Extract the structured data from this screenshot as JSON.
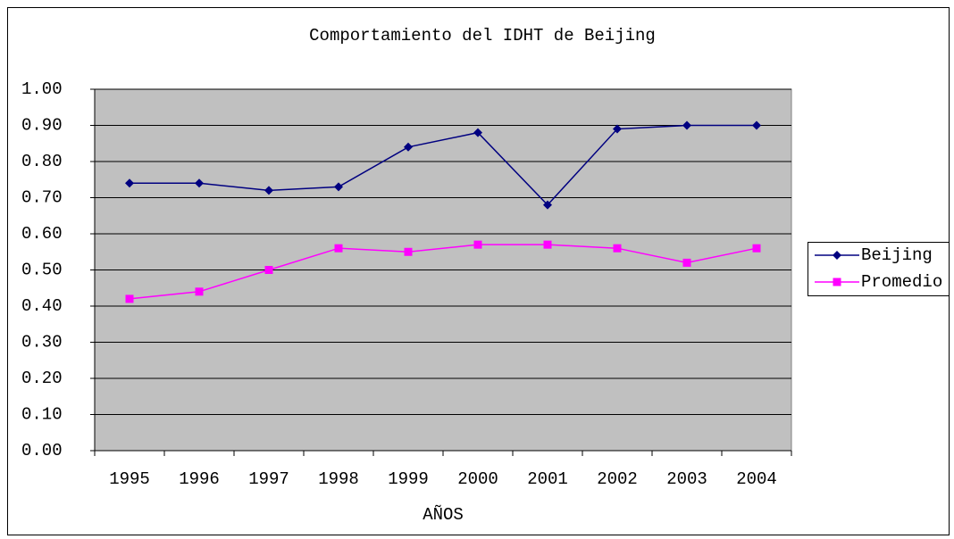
{
  "chart_data": {
    "type": "line",
    "title": "Comportamiento del IDHT de Beijing",
    "x_label": "AÑOS",
    "categories": [
      "1995",
      "1996",
      "1997",
      "1998",
      "1999",
      "2000",
      "2001",
      "2002",
      "2003",
      "2004"
    ],
    "series": [
      {
        "name": "Beijing",
        "color": "#000080",
        "marker": "diamond",
        "values": [
          0.74,
          0.74,
          0.72,
          0.73,
          0.84,
          0.88,
          0.68,
          0.89,
          0.9,
          0.9
        ]
      },
      {
        "name": "Promedio",
        "color": "#ff00ff",
        "marker": "square",
        "values": [
          0.42,
          0.44,
          0.5,
          0.56,
          0.55,
          0.57,
          0.57,
          0.56,
          0.52,
          0.56
        ]
      }
    ],
    "ylim": [
      0,
      1
    ],
    "yticks": [
      {
        "value": 0,
        "label": "0.00"
      },
      {
        "value": 0.1,
        "label": "0.10"
      },
      {
        "value": 0.2,
        "label": "0.20"
      },
      {
        "value": 0.3,
        "label": "0.30"
      },
      {
        "value": 0.4,
        "label": "0.40"
      },
      {
        "value": 0.5,
        "label": "0.50"
      },
      {
        "value": 0.6,
        "label": "0.60"
      },
      {
        "value": 0.7,
        "label": "0.70"
      },
      {
        "value": 0.8,
        "label": "0.80"
      },
      {
        "value": 0.9,
        "label": "0.90"
      },
      {
        "value": 1,
        "label": "1.00"
      }
    ],
    "grid": true,
    "plot_background": "#c0c0c0",
    "legend": "right"
  }
}
